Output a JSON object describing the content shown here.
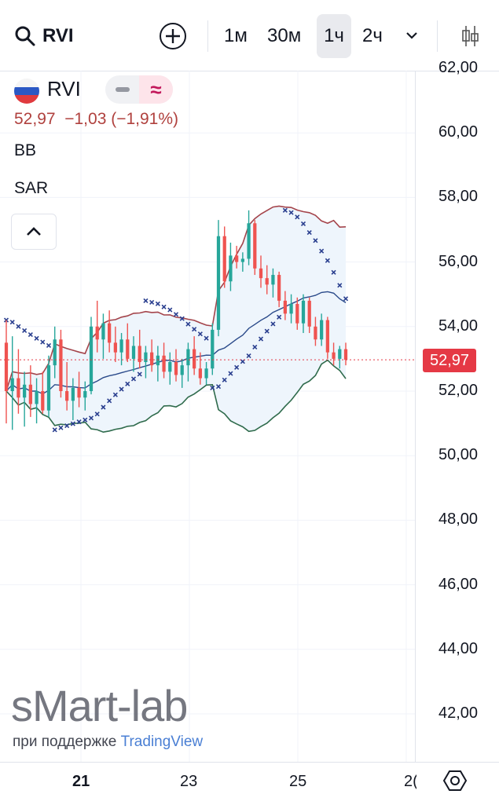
{
  "toolbar": {
    "symbol": "RVI",
    "intervals": [
      {
        "label": "1м",
        "active": false
      },
      {
        "label": "30м",
        "active": false
      },
      {
        "label": "1ч",
        "active": true
      },
      {
        "label": "2ч",
        "active": false
      }
    ],
    "icons": [
      "search-icon",
      "plus-circle-icon",
      "chevron-down-icon",
      "candlestick-icon"
    ]
  },
  "legend": {
    "symbol": "RVI",
    "last_price": "52,97",
    "change": "−1,03",
    "change_pct": "(−1,91%)",
    "indicators": [
      "BB",
      "SAR"
    ],
    "collapse_icon": "chevron-up-icon"
  },
  "price_axis": {
    "labels": [
      "62,00",
      "60,00",
      "58,00",
      "56,00",
      "54,00",
      "52,00",
      "50,00",
      "48,00",
      "46,00",
      "44,00",
      "42,00"
    ],
    "last_badge": "52,97"
  },
  "time_axis": {
    "labels": [
      "21",
      "23",
      "25",
      "2("
    ]
  },
  "watermark": {
    "brand": "sMart-lab",
    "support_prefix": "при поддержке",
    "support_brand": "TradingView"
  },
  "colors": {
    "up_candle": "#26a69a",
    "down_candle": "#ef5350",
    "bb_upper": "#a4444b",
    "bb_basis": "#2a4a8a",
    "bb_lower": "#2f6b4c",
    "bb_fill": "#eef5fc",
    "sar": "#2a3f8f",
    "last_price_badge": "#e53945"
  },
  "chart_data": {
    "type": "candlestick",
    "symbol": "RVI",
    "interval": "1ч",
    "ylim": [
      41,
      62.5
    ],
    "last": 52.97,
    "candles": [
      [
        53.5,
        54.2,
        51.0,
        52.0
      ],
      [
        52.0,
        53.7,
        50.8,
        52.4
      ],
      [
        52.4,
        53.3,
        51.3,
        51.8
      ],
      [
        51.8,
        52.6,
        50.9,
        52.2
      ],
      [
        52.2,
        52.8,
        51.2,
        51.6
      ],
      [
        51.6,
        52.4,
        51.0,
        52.0
      ],
      [
        52.0,
        52.6,
        51.3,
        51.4
      ],
      [
        51.4,
        53.1,
        51.2,
        52.8
      ],
      [
        52.8,
        54.0,
        52.4,
        53.6
      ],
      [
        53.6,
        53.9,
        51.8,
        52.0
      ],
      [
        52.0,
        52.9,
        51.4,
        51.7
      ],
      [
        51.7,
        52.4,
        51.1,
        52.1
      ],
      [
        52.1,
        52.6,
        51.5,
        51.8
      ],
      [
        51.8,
        52.3,
        51.4,
        52.0
      ],
      [
        52.0,
        54.3,
        51.9,
        54.0
      ],
      [
        54.0,
        54.8,
        53.2,
        53.6
      ],
      [
        53.6,
        54.4,
        53.0,
        54.1
      ],
      [
        54.1,
        54.5,
        53.2,
        53.5
      ],
      [
        53.5,
        54.0,
        52.9,
        53.2
      ],
      [
        53.2,
        53.8,
        52.8,
        53.6
      ],
      [
        53.6,
        54.1,
        52.9,
        53.0
      ],
      [
        53.0,
        53.7,
        52.6,
        53.4
      ],
      [
        53.4,
        53.9,
        52.7,
        52.9
      ],
      [
        52.9,
        53.4,
        52.4,
        53.2
      ],
      [
        53.2,
        53.6,
        52.6,
        52.8
      ],
      [
        52.8,
        53.4,
        52.3,
        53.1
      ],
      [
        53.1,
        53.5,
        52.4,
        52.6
      ],
      [
        52.6,
        53.2,
        52.2,
        52.9
      ],
      [
        52.9,
        53.3,
        52.3,
        52.5
      ],
      [
        52.5,
        53.0,
        52.1,
        52.8
      ],
      [
        52.8,
        53.5,
        52.3,
        53.3
      ],
      [
        53.3,
        53.7,
        52.5,
        52.7
      ],
      [
        52.7,
        53.2,
        52.2,
        52.4
      ],
      [
        52.4,
        52.9,
        52.2,
        52.7
      ],
      [
        52.7,
        54.1,
        52.5,
        53.9
      ],
      [
        53.9,
        57.3,
        53.7,
        56.8
      ],
      [
        56.8,
        57.1,
        55.2,
        55.4
      ],
      [
        55.4,
        56.6,
        55.1,
        56.2
      ],
      [
        56.2,
        56.5,
        55.8,
        56.0
      ],
      [
        56.0,
        56.3,
        55.7,
        56.1
      ],
      [
        56.1,
        57.6,
        55.9,
        57.2
      ],
      [
        57.2,
        57.3,
        55.6,
        55.8
      ],
      [
        55.8,
        56.2,
        55.2,
        55.5
      ],
      [
        55.5,
        55.9,
        55.0,
        55.3
      ],
      [
        55.3,
        55.8,
        54.9,
        55.6
      ],
      [
        55.6,
        55.7,
        54.6,
        54.8
      ],
      [
        54.8,
        55.1,
        54.2,
        54.4
      ],
      [
        54.4,
        55.0,
        54.1,
        54.7
      ],
      [
        54.7,
        54.9,
        53.9,
        54.1
      ],
      [
        54.1,
        55.0,
        53.8,
        54.8
      ],
      [
        54.8,
        54.9,
        53.8,
        54.0
      ],
      [
        54.0,
        54.3,
        53.4,
        53.6
      ],
      [
        53.6,
        54.4,
        53.4,
        54.2
      ],
      [
        54.2,
        54.3,
        53.0,
        53.2
      ],
      [
        53.2,
        53.5,
        52.8,
        53.0
      ],
      [
        53.0,
        53.4,
        52.7,
        53.3
      ],
      [
        53.3,
        53.5,
        52.8,
        52.97
      ]
    ]
  }
}
